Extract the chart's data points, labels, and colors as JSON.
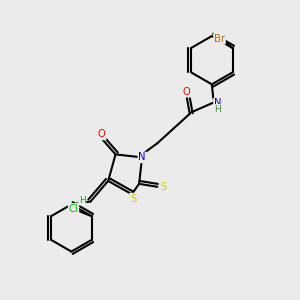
{
  "bg_color": "#ebebeb",
  "atom_colors": {
    "C": "#000000",
    "N": "#0000cc",
    "O": "#ff0000",
    "S": "#cccc00",
    "Br": "#cc6600",
    "Cl": "#00bb00",
    "H": "#448844"
  },
  "bond_color": "#000000",
  "bond_width": 1.5,
  "dbo": 0.12
}
